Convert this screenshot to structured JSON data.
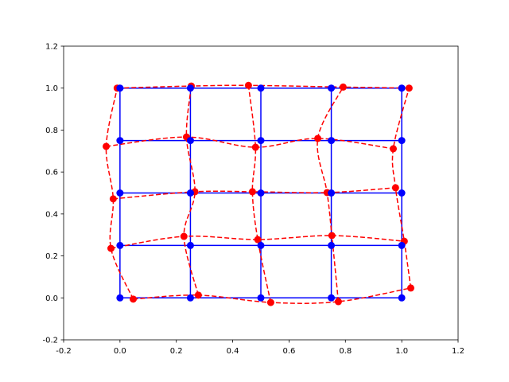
{
  "chart_data": {
    "type": "scatter",
    "xlim": [
      -0.2,
      1.2
    ],
    "ylim": [
      -0.2,
      1.2
    ],
    "xticks": [
      -0.2,
      {
        "value": 0,
        "label": "0.0"
      },
      0.2,
      0.4,
      0.6,
      0.8,
      {
        "value": 1,
        "label": "1.0"
      },
      1.2
    ],
    "yticks": [
      -0.2,
      {
        "value": 0,
        "label": "0.0"
      },
      0.2,
      0.4,
      0.6,
      0.8,
      {
        "value": 1,
        "label": "1.0"
      },
      1.2
    ],
    "series": [
      {
        "color": "#0000ff",
        "line_style": "solid",
        "x": [
          [
            0,
            0.25,
            0.5,
            0.75,
            1
          ],
          [
            0,
            0.25,
            0.5,
            0.75,
            1
          ],
          [
            0,
            0.25,
            0.5,
            0.75,
            1
          ],
          [
            0,
            0.25,
            0.5,
            0.75,
            1
          ],
          [
            0,
            0.25,
            0.5,
            0.75,
            1
          ]
        ],
        "y": [
          [
            0,
            0,
            0,
            0,
            0
          ],
          [
            0.25,
            0.25,
            0.25,
            0.25,
            0.25
          ],
          [
            0.5,
            0.5,
            0.5,
            0.5,
            0.5
          ],
          [
            0.75,
            0.75,
            0.75,
            0.75,
            0.75
          ],
          [
            1,
            1,
            1,
            1,
            1
          ]
        ]
      },
      {
        "color": "#ff0000",
        "line_style": "dashed",
        "x": [
          [
            0.047,
            0.278,
            0.535,
            0.775,
            1.032
          ],
          [
            -0.032,
            0.227,
            0.489,
            0.752,
            1.009
          ],
          [
            -0.024,
            0.266,
            0.47,
            0.735,
            0.978
          ],
          [
            -0.049,
            0.236,
            0.481,
            0.702,
            0.97
          ],
          [
            -0.01,
            0.253,
            0.456,
            0.792,
            1.026
          ]
        ],
        "y": [
          [
            -0.006,
            0.013,
            -0.022,
            -0.018,
            0.047
          ],
          [
            0.236,
            0.293,
            0.278,
            0.297,
            0.27
          ],
          [
            0.472,
            0.506,
            0.506,
            0.502,
            0.525
          ],
          [
            0.722,
            0.767,
            0.718,
            0.76,
            0.711
          ],
          [
            1.0,
            1.01,
            1.013,
            1.005,
            1.0
          ]
        ]
      }
    ]
  }
}
